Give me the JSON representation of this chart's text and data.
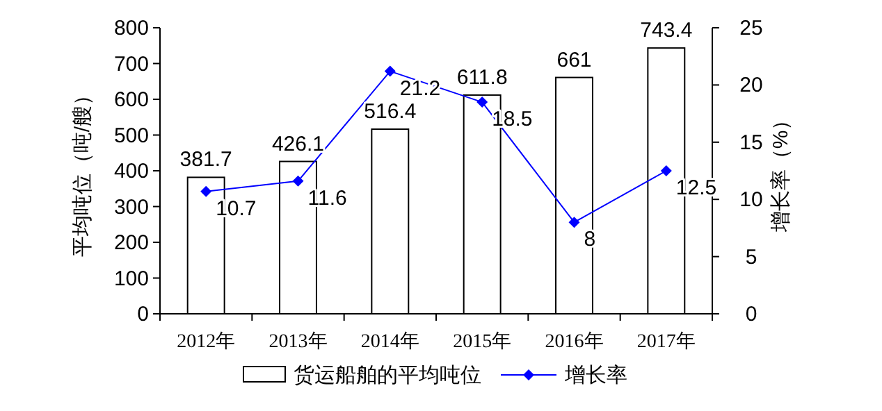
{
  "chart_data": {
    "type": "bar",
    "categories": [
      "2012年",
      "2013年",
      "2014年",
      "2015年",
      "2016年",
      "2017年"
    ],
    "ylabel": "平均吨位（吨/艘）",
    "y2label": "增长率（%）",
    "ylim": [
      0,
      800
    ],
    "yticks": [
      0,
      100,
      200,
      300,
      400,
      500,
      600,
      700,
      800
    ],
    "y2lim": [
      0,
      25
    ],
    "y2ticks": [
      0,
      5,
      10,
      15,
      20,
      25
    ],
    "series": [
      {
        "name": "货运船舶的平均吨位",
        "color": "#ffffff",
        "values": [
          381.7,
          426.1,
          516.4,
          611.8,
          661,
          743.4
        ]
      },
      {
        "name": "增长率",
        "type": "line",
        "axis": "y2",
        "color": "#0000ff",
        "marker": "diamond",
        "values": [
          10.7,
          11.6,
          21.2,
          18.5,
          8,
          12.5
        ]
      }
    ],
    "data_labels": true,
    "legend": "bottom",
    "grid": false
  }
}
